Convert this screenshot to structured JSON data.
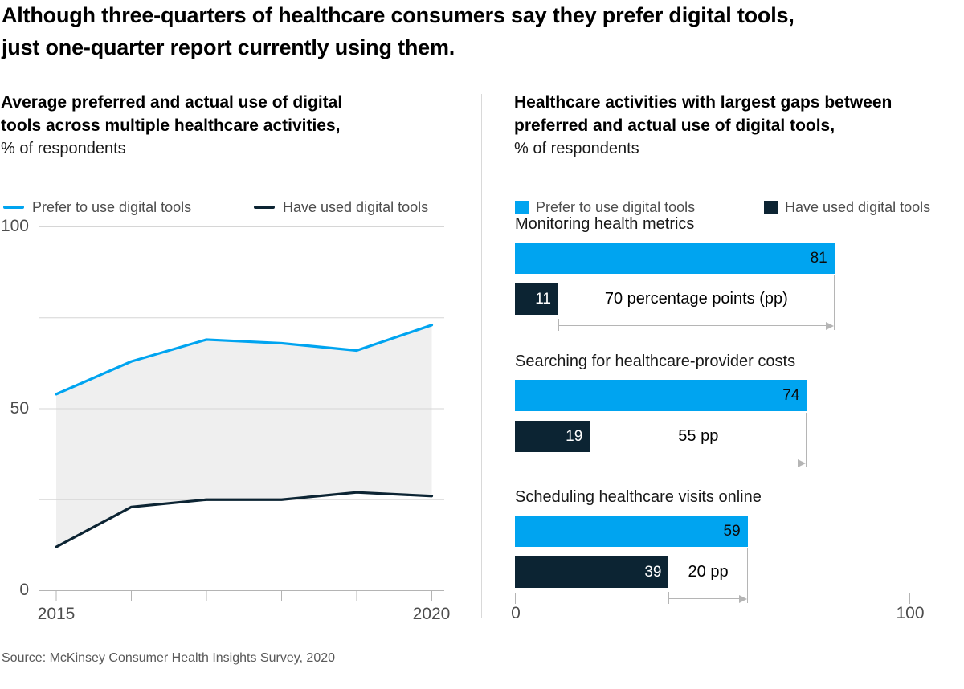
{
  "header": {
    "title_lines": [
      "Although three-quarters of healthcare consumers say they prefer digital tools,",
      "just one-quarter report currently using them."
    ]
  },
  "left_panel": {
    "title_lines": [
      "Average preferred and actual use of digital",
      "tools across multiple healthcare activities,"
    ],
    "subtitle": "% of respondents",
    "legend": [
      {
        "label": "Prefer to use digital tools"
      },
      {
        "label": "Have used digital tools"
      }
    ],
    "yticks_top_to_bottom": [
      "100",
      "50",
      "0"
    ],
    "xticks": [
      "2015",
      "2020"
    ]
  },
  "right_panel": {
    "title_lines": [
      "Healthcare activities with largest gaps between",
      "preferred and actual use of digital tools,"
    ],
    "subtitle": "% of respondents",
    "legend": [
      {
        "label": "Prefer to use digital tools"
      },
      {
        "label": "Have used digital tools"
      }
    ],
    "axis_ticks": [
      "0",
      "100"
    ]
  },
  "chart_data": [
    {
      "type": "line",
      "title": "Average preferred and actual use of digital tools across multiple healthcare activities, % of respondents",
      "x": [
        2015,
        2016,
        2017,
        2018,
        2019,
        2020
      ],
      "series": [
        {
          "name": "Prefer to use digital tools",
          "values": [
            54,
            63,
            69,
            68,
            66,
            73
          ]
        },
        {
          "name": "Have used digital tools",
          "values": [
            12,
            23,
            25,
            25,
            27,
            26
          ]
        }
      ],
      "ylim": [
        0,
        100
      ],
      "gridlines": [
        100,
        75,
        50,
        25,
        0
      ],
      "labeled_yticks": [
        100,
        50,
        0
      ],
      "labeled_xticks": [
        2015,
        2020
      ],
      "area_fill_between_series": true,
      "legend_position": "top"
    },
    {
      "type": "bar",
      "title": "Healthcare activities with largest gaps between preferred and actual use of digital tools, % of respondents",
      "xlim": [
        0,
        100
      ],
      "series_names": [
        "Prefer to use digital tools",
        "Have used digital tools"
      ],
      "groups": [
        {
          "label": "Monitoring health metrics",
          "prefer": 81,
          "used": 11,
          "gap": 70,
          "gap_label": "70 percentage points (pp)"
        },
        {
          "label": "Searching for healthcare-provider costs",
          "prefer": 74,
          "used": 19,
          "gap": 55,
          "gap_label": "55 pp"
        },
        {
          "label": "Scheduling healthcare visits online",
          "prefer": 59,
          "used": 39,
          "gap": 20,
          "gap_label": "20 pp"
        }
      ]
    }
  ],
  "source": "Source: McKinsey Consumer Health Insights Survey, 2020",
  "colors": {
    "prefer_blue": "#00A4F0",
    "used_navy": "#0C2433",
    "area_fill": "#EFEFEF",
    "gridline": "#D6D6D6",
    "axis": "#B4B4B4",
    "bracket": "#B5B5B5"
  }
}
